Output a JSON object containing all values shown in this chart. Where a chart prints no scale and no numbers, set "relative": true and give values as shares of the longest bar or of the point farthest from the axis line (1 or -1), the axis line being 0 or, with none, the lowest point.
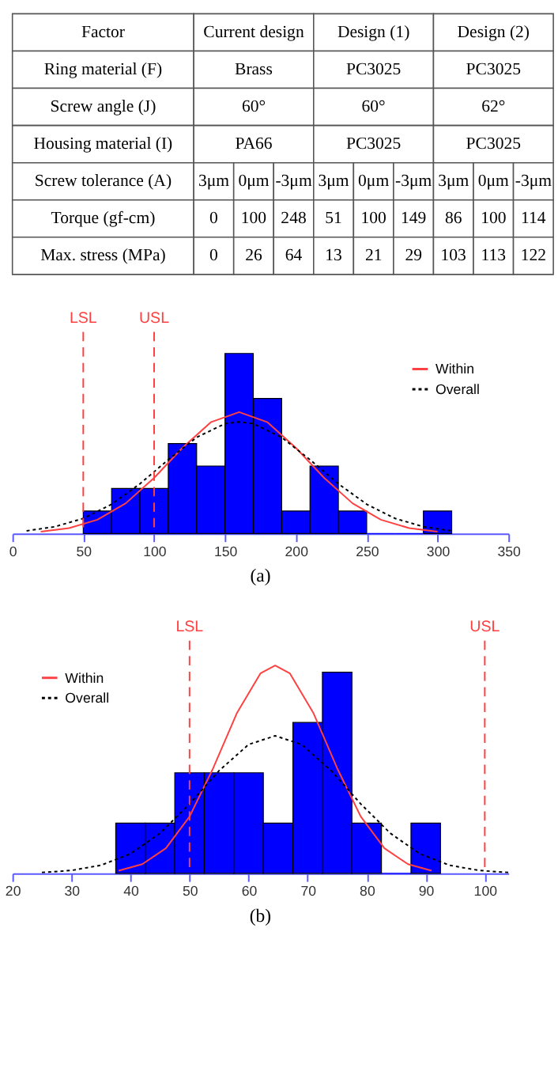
{
  "chart_data": [
    {
      "type": "other",
      "categories": [
        "Factor",
        "Current design",
        null,
        null,
        "Design (1)",
        null,
        null,
        "Design (2)",
        null,
        null
      ],
      "cell_labels": [
        [
          "Ring material (F)",
          "Brass",
          null,
          null,
          "PC3025",
          null,
          null,
          "PC3025",
          null,
          null
        ],
        [
          "Screw angle (J)",
          "60°",
          null,
          null,
          "60°",
          null,
          null,
          "62°",
          null,
          null
        ],
        [
          "Housing material (I)",
          "PA66",
          null,
          null,
          "PC3025",
          null,
          null,
          "PC3025",
          null,
          null
        ],
        [
          "Screw tolerance (A)",
          "3μm",
          "0μm",
          "-3μm",
          "3μm",
          "0μm",
          "-3μm",
          "3μm",
          "0μm",
          "-3μm"
        ],
        [
          "Torque (gf-cm)",
          "0",
          "100",
          "248",
          "51",
          "100",
          "149",
          "86",
          "100",
          "114"
        ],
        [
          "Max. stress (MPa)",
          "0",
          "26",
          "64",
          "13",
          "21",
          "29",
          "103",
          "113",
          "122"
        ]
      ]
    },
    {
      "type": "histogram",
      "relative": true,
      "color": "#0000ff",
      "bins": [
        50,
        70,
        90,
        110,
        130,
        150,
        170,
        190,
        210,
        230,
        250,
        270,
        290,
        310
      ],
      "values": [
        0.125,
        0.25,
        0.25,
        0.5,
        0.375,
        1,
        0.75,
        0.125,
        0.375,
        0.125,
        0,
        0,
        0.125
      ],
      "series": [
        {
          "type": "line",
          "name": "Within",
          "color": "#ff4040",
          "line_style": "solid",
          "x": [
            20,
            40,
            60,
            80,
            100,
            120,
            140,
            160,
            180,
            200,
            220,
            240,
            260,
            280,
            300
          ],
          "values": [
            0.01,
            0.03,
            0.077,
            0.168,
            0.309,
            0.476,
            0.618,
            0.674,
            0.618,
            0.476,
            0.309,
            0.168,
            0.077,
            0.03,
            0.01
          ]
        },
        {
          "type": "line",
          "name": "Overall",
          "color": "#000000",
          "line_style": "dotted",
          "x": [
            10,
            30,
            50,
            70,
            90,
            110,
            130,
            150,
            160,
            170,
            190,
            210,
            230,
            250,
            270,
            290,
            310
          ],
          "values": [
            0.015,
            0.038,
            0.084,
            0.163,
            0.276,
            0.41,
            0.534,
            0.61,
            0.62,
            0.61,
            0.534,
            0.41,
            0.276,
            0.163,
            0.084,
            0.038,
            0.015
          ]
        }
      ],
      "xlim": [
        0,
        350
      ],
      "xticks": [
        0,
        50,
        100,
        150,
        200,
        250,
        300,
        350
      ],
      "ref_lines": [
        {
          "axis": "x",
          "value": 50,
          "label": "LSL",
          "color": "#ff4040",
          "line_style": "dashed"
        },
        {
          "axis": "x",
          "value": 100,
          "label": "USL",
          "color": "#ff4040",
          "line_style": "dashed"
        }
      ],
      "legend": "top right",
      "annotations": [
        "(a)"
      ]
    },
    {
      "type": "histogram",
      "relative": true,
      "color": "#0000ff",
      "bins": [
        37.5,
        42.5,
        47.5,
        52.5,
        57.5,
        62.5,
        67.5,
        72.5,
        77.5,
        82.5,
        87.5,
        92.5
      ],
      "values": [
        0.242,
        0.242,
        0.484,
        0.484,
        0.484,
        0.242,
        0.726,
        0.968,
        0.242,
        0,
        0.242
      ],
      "series": [
        {
          "type": "line",
          "name": "Within",
          "color": "#ff4040",
          "line_style": "solid",
          "x": [
            38,
            42,
            46,
            50,
            54,
            58,
            62,
            64.5,
            67,
            71,
            75,
            79,
            83,
            87,
            91
          ],
          "values": [
            0.013,
            0.044,
            0.121,
            0.273,
            0.506,
            0.77,
            0.962,
            1,
            0.962,
            0.77,
            0.506,
            0.273,
            0.121,
            0.044,
            0.013
          ]
        },
        {
          "type": "line",
          "name": "Overall",
          "color": "#000000",
          "line_style": "dotted",
          "x": [
            25,
            30,
            35,
            40,
            45,
            50,
            55,
            60,
            64.5,
            69,
            74,
            79,
            84,
            89,
            94,
            99,
            104
          ],
          "values": [
            0.004,
            0.014,
            0.039,
            0.094,
            0.193,
            0.334,
            0.494,
            0.62,
            0.662,
            0.62,
            0.494,
            0.334,
            0.193,
            0.094,
            0.039,
            0.014,
            0.004
          ]
        }
      ],
      "xlim": [
        20,
        104
      ],
      "xticks": [
        20,
        30,
        40,
        50,
        60,
        70,
        80,
        90,
        100
      ],
      "ref_lines": [
        {
          "axis": "x",
          "value": 50,
          "label": "LSL",
          "color": "#ff4040",
          "line_style": "dashed"
        },
        {
          "axis": "x",
          "value": 100,
          "label": "USL",
          "color": "#ff4040",
          "line_style": "dashed"
        }
      ],
      "legend": "top left",
      "annotations": [
        "(b)"
      ]
    }
  ]
}
